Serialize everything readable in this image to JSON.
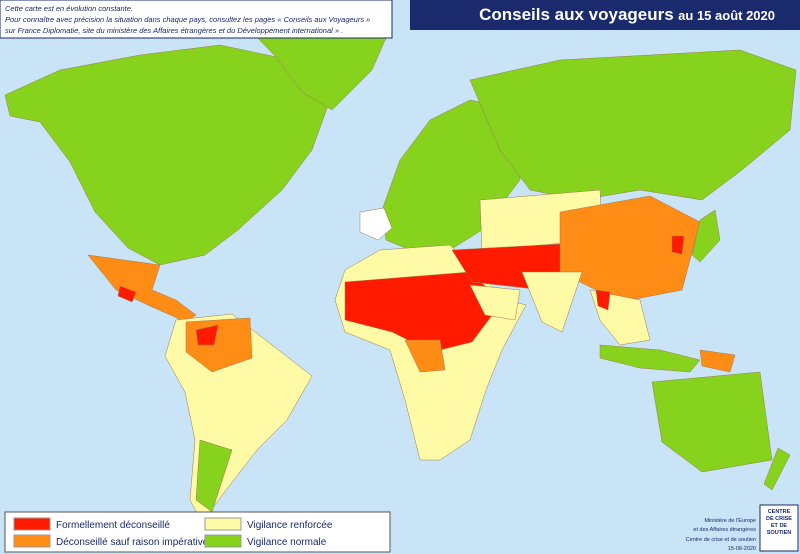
{
  "header": {
    "title": "Conseils aux voyageurs",
    "date": "au 15 août 2020"
  },
  "note": {
    "lines": [
      "Cette carte est en évolution constante.",
      "Pour connaître avec précision la situation dans chaque pays, consultez les pages « Conseils aux Voyageurs »",
      "sur France Diplomatie, site du ministère des Affaires étrangères et du Développement international » ."
    ]
  },
  "legend": {
    "items": [
      {
        "label": "Formellement déconseillé",
        "color": "#ff1a00"
      },
      {
        "label": "Déconseillé sauf raison impérative",
        "color": "#ff8c14"
      },
      {
        "label": "Vigilance renforcée",
        "color": "#fffaa6"
      },
      {
        "label": "Vigilance normale",
        "color": "#86d21c"
      }
    ]
  },
  "logo": {
    "lines": [
      "CENTRE",
      "DE CRISE",
      "ET DE",
      "SOUTIEN"
    ]
  },
  "credits": {
    "lines": [
      "Ministère de l'Europe",
      "et des Affaires étrangères",
      "Centre de crise et de soutien",
      "15-08-2020"
    ]
  }
}
